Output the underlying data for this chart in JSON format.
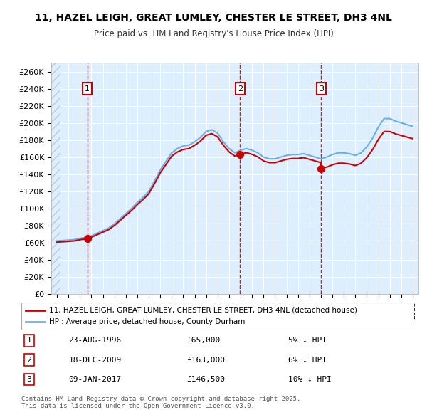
{
  "title": "11, HAZEL LEIGH, GREAT LUMLEY, CHESTER LE STREET, DH3 4NL",
  "subtitle": "Price paid vs. HM Land Registry's House Price Index (HPI)",
  "ylabel_ticks": [
    "£0",
    "£20K",
    "£40K",
    "£60K",
    "£80K",
    "£100K",
    "£120K",
    "£140K",
    "£160K",
    "£180K",
    "£200K",
    "£220K",
    "£240K",
    "£260K"
  ],
  "ylim": [
    0,
    270000
  ],
  "yticks": [
    0,
    20000,
    40000,
    60000,
    80000,
    100000,
    120000,
    140000,
    160000,
    180000,
    200000,
    220000,
    240000,
    260000
  ],
  "xlim_start": 1993.5,
  "xlim_end": 2025.5,
  "hpi_color": "#6ab0e8",
  "sale_color": "#cc0000",
  "annotation_box_color": "#cc0000",
  "sale_events": [
    {
      "label": "1",
      "date": "23-AUG-1996",
      "x": 1996.64,
      "price": 65000,
      "price_str": "£65,000",
      "pct": "5% ↓ HPI"
    },
    {
      "label": "2",
      "date": "18-DEC-2009",
      "x": 2009.96,
      "price": 163000,
      "price_str": "£163,000",
      "pct": "6% ↓ HPI"
    },
    {
      "label": "3",
      "date": "09-JAN-2017",
      "x": 2017.03,
      "price": 146500,
      "price_str": "£146,500",
      "pct": "10% ↓ HPI"
    }
  ],
  "hpi_data": {
    "years": [
      1994,
      1994.5,
      1995,
      1995.5,
      1996,
      1996.5,
      1997,
      1997.5,
      1998,
      1998.5,
      1999,
      1999.5,
      2000,
      2000.5,
      2001,
      2001.5,
      2002,
      2002.5,
      2003,
      2003.5,
      2004,
      2004.5,
      2005,
      2005.5,
      2006,
      2006.5,
      2007,
      2007.5,
      2008,
      2008.5,
      2009,
      2009.5,
      2010,
      2010.5,
      2011,
      2011.5,
      2012,
      2012.5,
      2013,
      2013.5,
      2014,
      2014.5,
      2015,
      2015.5,
      2016,
      2016.5,
      2017,
      2017.5,
      2018,
      2018.5,
      2019,
      2019.5,
      2020,
      2020.5,
      2021,
      2021.5,
      2022,
      2022.5,
      2023,
      2023.5,
      2024,
      2024.5,
      2025
    ],
    "values": [
      62000,
      62500,
      63000,
      63500,
      65000,
      66000,
      68000,
      71000,
      74000,
      77000,
      82000,
      88000,
      94000,
      100000,
      107000,
      113000,
      120000,
      132000,
      145000,
      155000,
      165000,
      170000,
      173000,
      174000,
      178000,
      183000,
      190000,
      192000,
      188000,
      178000,
      170000,
      165000,
      168000,
      170000,
      168000,
      165000,
      160000,
      158000,
      158000,
      160000,
      162000,
      163000,
      163000,
      164000,
      162000,
      160000,
      158000,
      160000,
      163000,
      165000,
      165000,
      164000,
      162000,
      165000,
      172000,
      182000,
      195000,
      205000,
      205000,
      202000,
      200000,
      198000,
      196000
    ]
  },
  "sale_line_data": {
    "x": [
      1994,
      1996.64,
      1996.64,
      2009.96,
      2009.96,
      2017.03,
      2017.03,
      2025
    ],
    "y": [
      65000,
      65000,
      65000,
      163000,
      163000,
      146500,
      146500,
      196000
    ]
  },
  "legend_label_sale": "11, HAZEL LEIGH, GREAT LUMLEY, CHESTER LE STREET, DH3 4NL (detached house)",
  "legend_label_hpi": "HPI: Average price, detached house, County Durham",
  "footnote": "Contains HM Land Registry data © Crown copyright and database right 2025.\nThis data is licensed under the Open Government Licence v3.0.",
  "bg_color": "#ddeeff",
  "plot_bg": "#ddeeff",
  "hatch_color": "#c0c8d8",
  "grid_color": "#ffffff"
}
